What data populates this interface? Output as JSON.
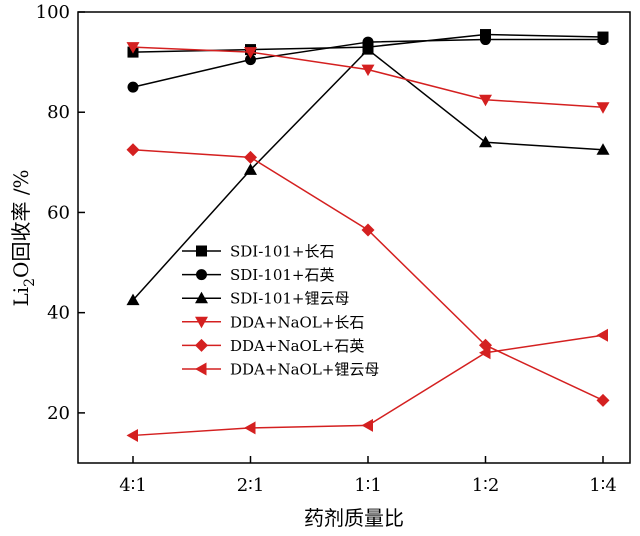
{
  "chart_data": {
    "type": "line",
    "xlabel": "药剂质量比",
    "ylabel_main": "Li",
    "ylabel_sub": "2",
    "ylabel_rest": "O回收率 /%",
    "categories": [
      "4∶1",
      "2∶1",
      "1∶1",
      "1∶2",
      "1∶4"
    ],
    "ylim": [
      10,
      100
    ],
    "yticks": [
      20,
      40,
      60,
      80,
      100
    ],
    "grid": false,
    "legend_position": "center-left",
    "series": [
      {
        "name": "SDI-101+长石",
        "color": "#000000",
        "marker": "square",
        "values": [
          92,
          92.5,
          93,
          95.5,
          95
        ]
      },
      {
        "name": "SDI-101+石英",
        "color": "#000000",
        "marker": "circle",
        "values": [
          85,
          90.5,
          94,
          94.5,
          94.5
        ]
      },
      {
        "name": "SDI-101+锂云母",
        "color": "#000000",
        "marker": "triangle-up",
        "values": [
          42.5,
          68.5,
          92.5,
          74,
          72.5
        ]
      },
      {
        "name": "DDA+NaOL+长石",
        "color": "#d42020",
        "marker": "triangle-down",
        "values": [
          93,
          92,
          88.5,
          82.5,
          81
        ]
      },
      {
        "name": "DDA+NaOL+石英",
        "color": "#d42020",
        "marker": "diamond",
        "values": [
          72.5,
          71,
          56.5,
          33.5,
          22.5
        ]
      },
      {
        "name": "DDA+NaOL+锂云母",
        "color": "#d42020",
        "marker": "triangle-left",
        "values": [
          15.5,
          17,
          17.5,
          32,
          35.5
        ]
      }
    ]
  }
}
